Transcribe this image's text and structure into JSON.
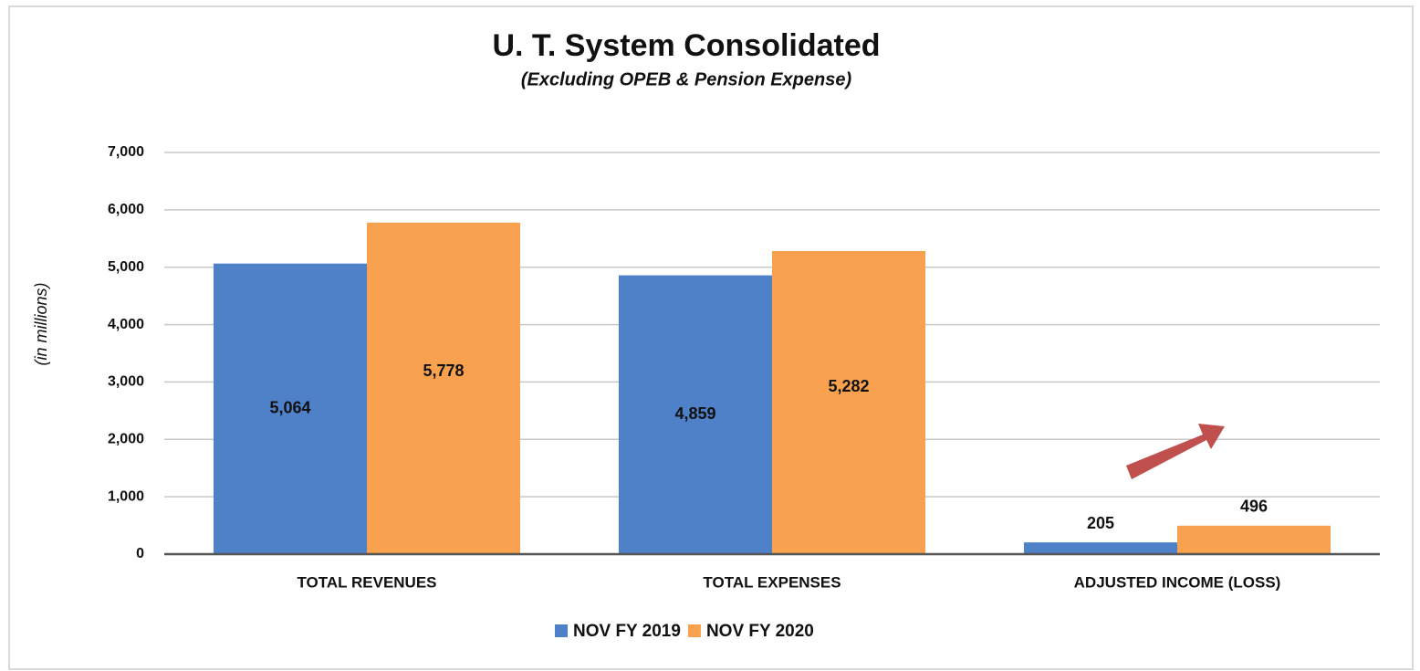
{
  "chart_data": {
    "type": "bar",
    "title": "U. T. System Consolidated",
    "subtitle": "(Excluding OPEB & Pension Expense)",
    "y_label": "(in  millions)",
    "categories": [
      "TOTAL REVENUES",
      "TOTAL EXPENSES",
      "ADJUSTED INCOME (LOSS)"
    ],
    "series": [
      {
        "name": "NOV FY 2019",
        "color": "#4f81c8",
        "values": [
          5064,
          4859,
          205
        ],
        "value_labels": [
          "5,064",
          "4,859",
          "205"
        ]
      },
      {
        "name": "NOV FY 2020",
        "color": "#f8a14f",
        "values": [
          5778,
          5282,
          496
        ],
        "value_labels": [
          "5,778",
          "5,282",
          "496"
        ]
      }
    ],
    "ylim": [
      0,
      7000
    ],
    "yticks": [
      0,
      {
        "value": 1000,
        "label": "1,000"
      },
      {
        "value": 2000,
        "label": "2,000"
      },
      {
        "value": 3000,
        "label": "3,000"
      },
      {
        "value": 4000,
        "label": "4,000"
      },
      {
        "value": 5000,
        "label": "5,000"
      },
      {
        "value": 6000,
        "label": "6,000"
      },
      {
        "value": 7000,
        "label": "7,000"
      }
    ],
    "grid": true,
    "legend": "bottom"
  }
}
